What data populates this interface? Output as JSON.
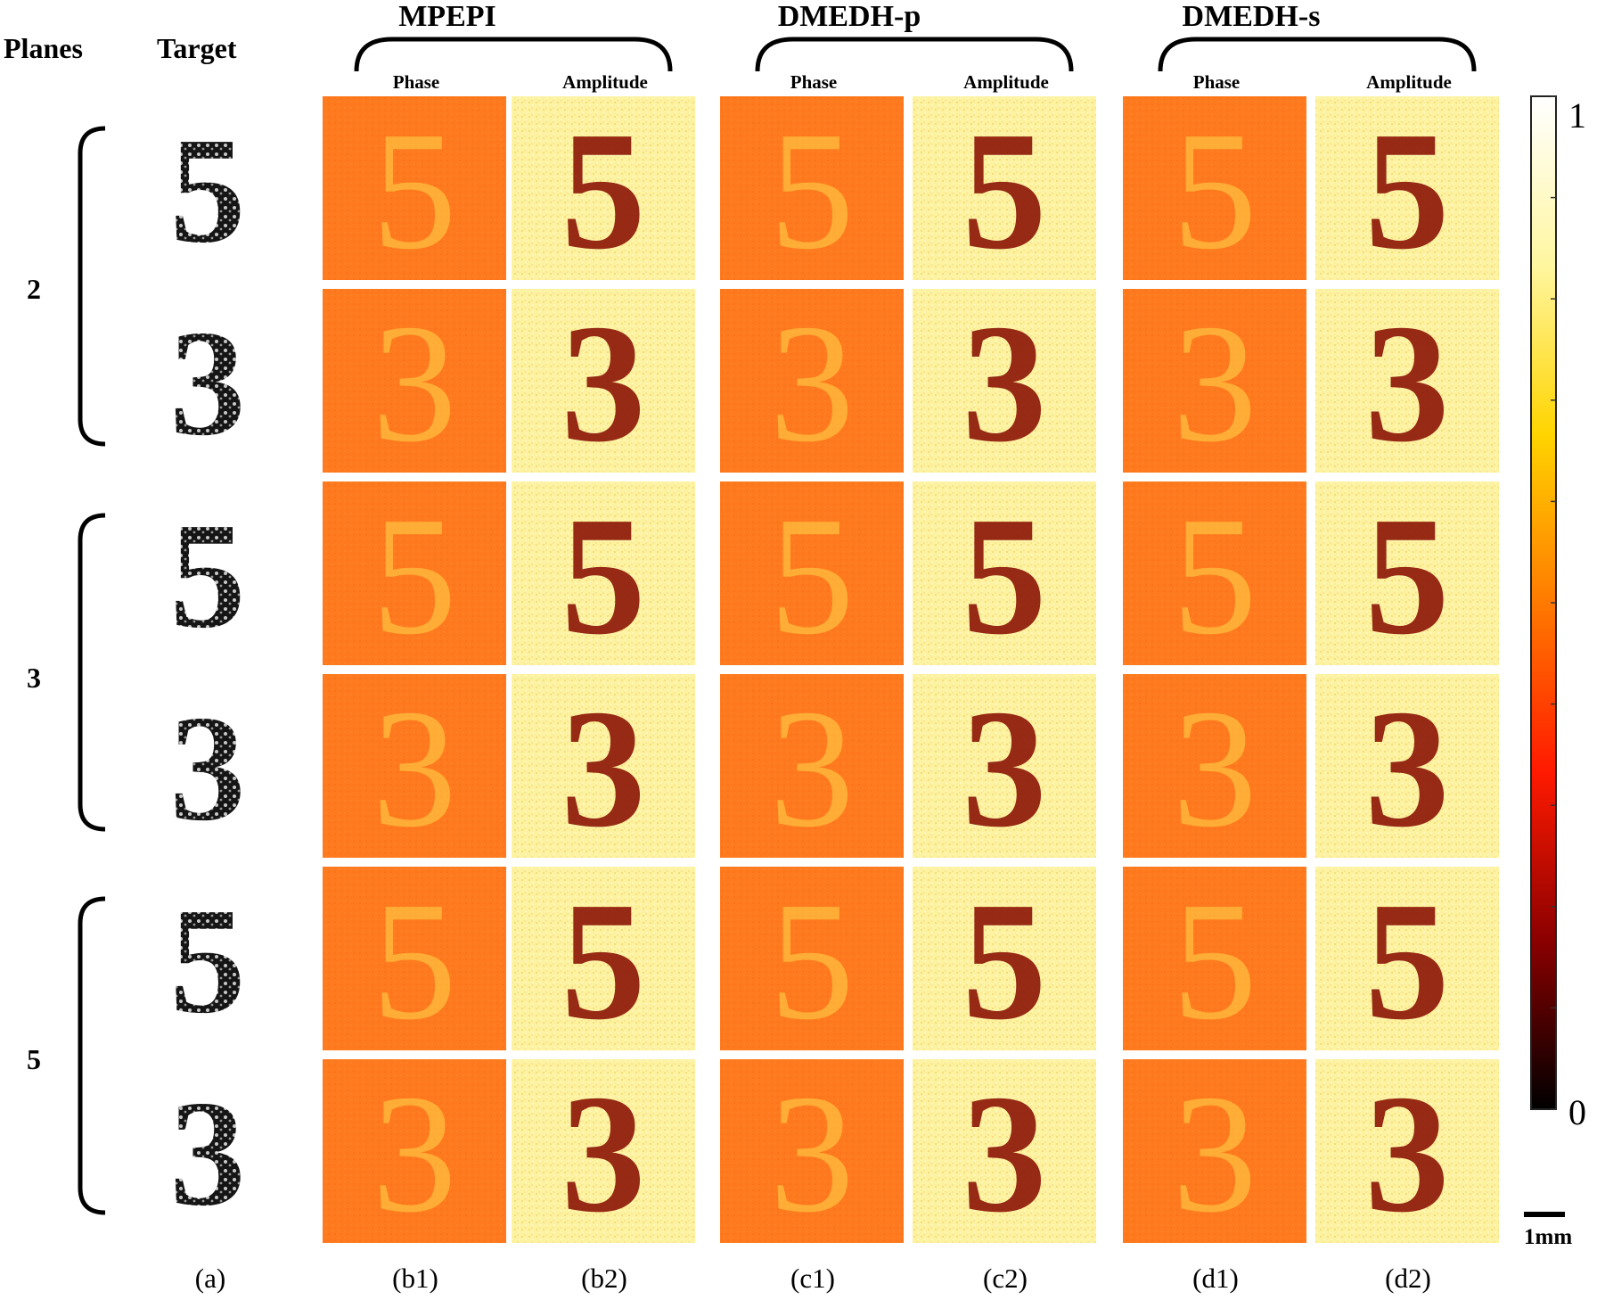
{
  "headers": {
    "planes": "Planes",
    "target": "Target",
    "methods": [
      "MPEPI",
      "DMEDH-p",
      "DMEDH-s"
    ],
    "phase": "Phase",
    "amplitude": "Amplitude"
  },
  "planes": [
    "2",
    "3",
    "5"
  ],
  "digits": [
    "5",
    "3",
    "5",
    "3",
    "5",
    "3"
  ],
  "columns": [
    "(a)",
    "(b1)",
    "(b2)",
    "(c1)",
    "(c2)",
    "(d1)",
    "(d2)"
  ],
  "colorbar": {
    "max": "1",
    "min": "0",
    "colors": [
      "#000000",
      "#8b0000",
      "#ff1a00",
      "#ff7a00",
      "#ffd400",
      "#fff6a0",
      "#ffffff"
    ]
  },
  "scalebar": {
    "label": "1mm"
  },
  "colors": {
    "phase_bg": "#ff7a1e",
    "phase_fg": "#ffd84a",
    "amp_bg": "#fdf2a0",
    "amp_fg": "#8e1a0a",
    "target_fg": "#151515"
  }
}
